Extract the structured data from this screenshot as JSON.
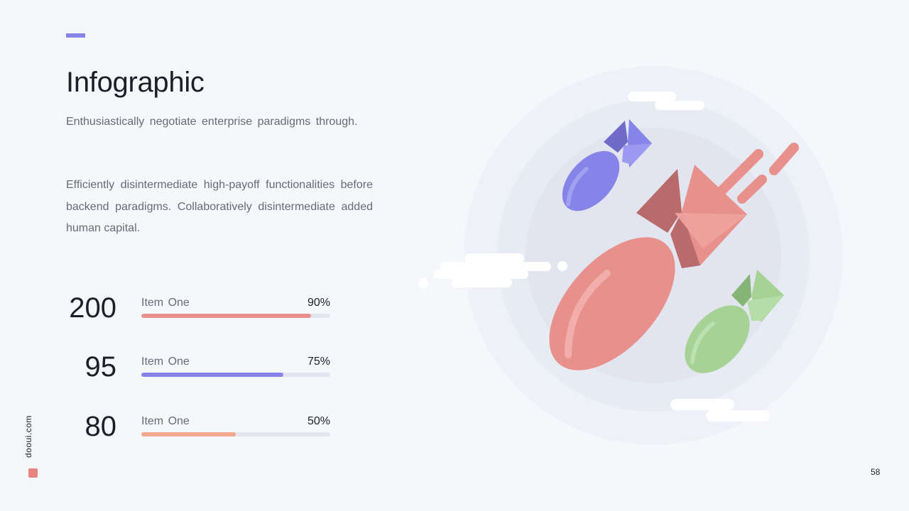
{
  "slide": {
    "title": "Infographic",
    "subtitle": "Enthusiastically negotiate enterprise paradigms through.",
    "paragraph": "Efficiently disintermediate high-payoff functionalities before backend paradigms. Collaboratively disintermediate added human capital.",
    "page_number": "58",
    "brand": "dooui.com"
  },
  "stats": [
    {
      "number": "200",
      "label": "Item One",
      "percent_text": "90%",
      "progress": 0.9,
      "color": "#e8908c"
    },
    {
      "number": "95",
      "label": "Item One",
      "percent_text": "75%",
      "progress": 0.75,
      "color": "#8684e8"
    },
    {
      "number": "80",
      "label": "Item One",
      "percent_text": "50%",
      "progress": 0.5,
      "color": "#f0a98e"
    }
  ],
  "colors": {
    "accent": "#8684e8",
    "red": "#e8908c",
    "purple": "#8684e8",
    "green": "#a6d395",
    "orange": "#f0a98e"
  },
  "illustration": {
    "icon": "falling-bombs-illustration"
  }
}
